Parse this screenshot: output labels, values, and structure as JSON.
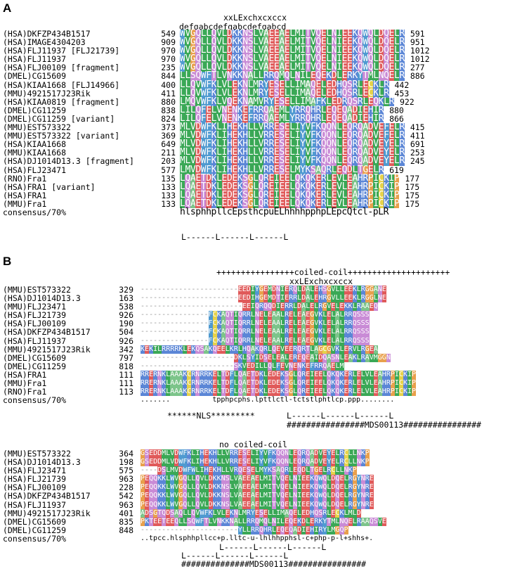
{
  "panels": [
    {
      "label": "A",
      "blocks": [
        {
          "header_lines": [
            "xxLExchxcxccx",
            "defgabcdefgabcdefgabcd"
          ],
          "rows": [
            {
              "name": "(HSA)DKFZP434B1517",
              "start": 549,
              "sequence": "WVGQLLQVLDKKNSLVAEEAELMITVQELNIEEKQWQLDQELR",
              "end": 591
            },
            {
              "name": "(HSA)IMAGE4304203",
              "start": 909,
              "sequence": "WVGQLLQVLDKKNSLVAEEAELMITVQELNIEEKQWQLDQELR",
              "end": 951
            },
            {
              "name": "(HSA)FLJ11937 [FLJ21739]",
              "start": 970,
              "sequence": "WVGQLLQVLDKKNSLVAEEAELMITVQELNIEEKQWQLDQELR",
              "end": 1012
            },
            {
              "name": "(HSA)FLJ11937",
              "start": 970,
              "sequence": "WVGQLLQVLDKKNSLVAEEAELMITVQELNIEEKQWQLDQELR",
              "end": 1012
            },
            {
              "name": "(HSA)FLJ00109 [fragment]",
              "start": 235,
              "sequence": "WVGQLLQVLDKKNSLVAEEAELMITVQELNIEEKQWQLDQELR",
              "end": 277
            },
            {
              "name": "(DMEL)CG15609",
              "start": 844,
              "sequence": "LLSQWFTLVNKKNALLRRQMQLNILEQEKDLERKYTMLNQELR",
              "end": 886
            },
            {
              "name": "(HSA)KIAA1668 [FLJ14966]",
              "start": 400,
              "sequence": "LLQVWFKLVLEKNLMRYESELLIMAQELEDHQSRLECKLR",
              "end": 442
            },
            {
              "name": "(MMU)4921517J23Rik",
              "start": 411,
              "sequence": "LLQVWFKLVLEKNLMRYESELLIMAQELEDHQSRLECKLR",
              "end": 453
            },
            {
              "name": "(HSA)KIAA0819 [fragment]",
              "start": 880,
              "sequence": "LMQVWFKLVQEKNAMVRYESELLIMAFKLEDRQSRLEQKLR",
              "end": 922
            },
            {
              "name": "(DMEL)CG11259",
              "start": 838,
              "sequence": "LILQFELVNENKEFRRQAEMLYRRQHRLEQEQADIEHIR",
              "end": 880
            },
            {
              "name": "(DMEL)CG11259 [variant]",
              "start": 824,
              "sequence": "LILQFELVNENKEFRRQAEMLYRRQHRLEQEQADIEHIR",
              "end": 866
            },
            {
              "name": "(MMU)EST573322",
              "start": 373,
              "sequence": "MLVDWFKLIHEKHLLVRRESELIYVFKQQNLEQRQADVEFELR",
              "end": 415
            },
            {
              "name": "(MMU)EST573322 [variant]",
              "start": 369,
              "sequence": "MLVDWFKLIHEKHLLVRRESELIYVFKQQNLEQRQADVEFELR",
              "end": 411
            },
            {
              "name": "(HSA)KIAA1668",
              "start": 649,
              "sequence": "MLVDWFKLIHEKHLLVRRESELIYVFKQQNLEQRQADVEYELR",
              "end": 691
            },
            {
              "name": "(MMU)KIAA1668",
              "start": 211,
              "sequence": "MLVDWFKLIHEKHLLVRRESELIYVFKQQNLEQRQADVEYELR",
              "end": 253
            },
            {
              "name": "(HSA)DJ1014D13.3 [fragment]",
              "start": 203,
              "sequence": "MLVDWFKLIHEKHLLVRRESELIYVFKQQNLEQRQADVEYELR",
              "end": 245
            },
            {
              "name": "(HSA)FLJ23471",
              "start": 577,
              "sequence": "LMVDWFKLIHEKHLLVRRESELMYKSAQRLEQDLTGELR",
              "end": 619
            },
            {
              "name": "(RNO)Fra1",
              "start": 135,
              "sequence": "LQAETDKLEDEKSGLQREIEELQKQKERLEVLEAHRPICKIP",
              "end": 177
            },
            {
              "name": "(HSA)FRA1 [variant]",
              "start": 133,
              "sequence": "LQAETDKLEDEKSGLQREIEELQKQKERLEVLEAHRPICKIP",
              "end": 175
            },
            {
              "name": "(HSA)FRA1",
              "start": 133,
              "sequence": "LQAETDKLEDEKSGLQREIEELQKQKERLEVLEAHRPICKIP",
              "end": 175
            },
            {
              "name": "(MMU)Fra1",
              "start": 133,
              "sequence": "LQAETDKLEDEKSGLQREIEELQKQKERLEVLEAHRPICKIP",
              "end": 175
            }
          ],
          "consensus_label": "consensus/70%",
          "consensus": "hlsphhpllcEpsthcpuELhhhhpphpLEpcQtcl-pLR",
          "footer_lines": [
            "L------L------L------L"
          ]
        }
      ]
    },
    {
      "label": "B",
      "blocks": [
        {
          "header_lines": [
            "++++++++++++++++coiled-coil+++++++++++++++++++++",
            "xxLExchxcxccx"
          ],
          "rows": [
            {
              "name": "(MMU)EST573322",
              "start": 329,
              "sequence": "-----------------------EEDIYGEMDNIERQLDALEHSGVLLEEKLRGGANE"
            },
            {
              "name": "(HSA)DJ1014D13.3",
              "start": 163,
              "sequence": "-----------------------EEDIHGEMDTIERRLDALEHRGVLLEEKLRGGLNE"
            },
            {
              "name": "(MMU)FLJ23471",
              "start": 538,
              "sequence": "------------------------EEIQRQQDIERRLDALELRGVELEKKLRAAEQ"
            },
            {
              "name": "(HSA)FLJ21739",
              "start": 926,
              "sequence": "----------------FCKAQTIQRRLNELEAALRELEAEGVKLELALRRQSSS"
            },
            {
              "name": "(HSA)FLJ00109",
              "start": 190,
              "sequence": "----------------FCKAQTIQRRLNELEAALRELEAEGVKLELALRRQSSS"
            },
            {
              "name": "(HSA)DKFZP434B1517",
              "start": 504,
              "sequence": "----------------FCKAQTIQRRLNELEAALRELEAEGVKLELALRRQSSS"
            },
            {
              "name": "(HSA)FLJ11937",
              "start": 926,
              "sequence": "----------------FCKAQTIQRRLNELEAALRELEAEGVKLELALRRQSSS"
            },
            {
              "name": "(MMU)4921517J23Rik",
              "start": 342,
              "sequence": "KEKILRRRRKLEKQSAKQEELKRLHQAKQRLQEVEERQRTLAGCGVKLERVLRGEA"
            },
            {
              "name": "(DMEL)CG15609",
              "start": 797,
              "sequence": "----------------------DKLSYIDSELEALEREQEAIDQASNLEAKLRAVMGGN"
            },
            {
              "name": "(DMEL)CG11259",
              "start": 818,
              "sequence": "----------------------SKVEDILLQLFEVNENKEFRRQAELM"
            },
            {
              "name": "(HSA)FRA1",
              "start": 111,
              "sequence": "RRERNKLAAAKCRNRRKELTDFLQAETDKLEDEKSGLQREIEELQKQKERLELVLEAHRPICKIP"
            },
            {
              "name": "(MMU)Fra1",
              "start": 111,
              "sequence": "RRERNKLAAAKCRNRRKELTDFLQAETDKLEDEKSGLQREIEELQKQKERLELVLEAHRPICKIP"
            },
            {
              "name": "(RNO)Fra1",
              "start": 113,
              "sequence": "RRERNKLAAAKCRNRRKELTDFLQAETDKLEDEKSGLQREIEELQKQKERLELVLEAHRPICKIP"
            }
          ],
          "consensus_label": "consensus/70%",
          "consensus": ".......          tpphpcphs.lpttlctl-tctstlphtlcp.ppp........",
          "footer_lines": [
            "******NLS*********",
            "L------L------L------L",
            "################MDS00113################"
          ]
        },
        {
          "header_lines": [
            "no coiled-coil"
          ],
          "rows": [
            {
              "name": "(MMU)EST573322",
              "start": 364,
              "sequence": "GSEDDMLVDWFKLIHEKHLLVRRESELIYVFKQQNLEQRQADVEYELRCLLNKP"
            },
            {
              "name": "(HSA)DJ1014D13.3",
              "start": 198,
              "sequence": "GSEDDMLVDWFKLIHEKHLLVRRESELIYVFKQQNLEQRQADVEYELRCLLNKP"
            },
            {
              "name": "(HSA)FLJ23471",
              "start": 575,
              "sequence": "----DSLMVDWFWLIHEKHLLVRQESELMYKSAQRLEQDLTGELRCLLNKP"
            },
            {
              "name": "(HSA)FLJ21739",
              "start": 963,
              "sequence": "PEQQKKLWVGQLLQVLDKKNSLVAEEAELMITVQELNIEEKQWQLDQELRGYNRE"
            },
            {
              "name": "(HSA)FLJ00109",
              "start": 228,
              "sequence": "PEQQKKLWVGQLLQVLDKKNSLVAEEAELMITVQELNIEEKQWQLDQELRGYNRE"
            },
            {
              "name": "(HSA)DKFZP434B1517",
              "start": 542,
              "sequence": "PEQQKKLWVGQLLQVLDKKNSLVAEEAELMITVQELNIEEKQWQLDQELRGYNRE"
            },
            {
              "name": "(HSA)FLJ11937",
              "start": 963,
              "sequence": "PEQQKKLWVGQLLQVLDKKNSLVAEEAELMITVQELNIEEKQWQLDQELRGYNRE"
            },
            {
              "name": "(MMU)4921517J23Rik",
              "start": 401,
              "sequence": "ADSGTQDSAQLLQVWFKLVLEKNLMRYESELLIMAQELEDHQSRLECKLMLD"
            },
            {
              "name": "(DMEL)CG15609",
              "start": 835,
              "sequence": "PKTEETEEQLLSQWFTLVNKKNALLRRQMQLNILEQEKDLERKYTMLNQELRAAQSVE"
            },
            {
              "name": "(DMEL)CG11259",
              "start": 848,
              "sequence": "-----------------------YLLRRQHRLEQEQADIEHIRYLMGQP"
            }
          ],
          "consensus_label": "consensus/70%",
          "consensus": "..tpcc.hlsphhpllcc+p.lltc-u-lhlhhpphsl-c+php-p-l+shhs+.",
          "footer_lines": [
            "L------L------L------L",
            "L------L------L------L",
            "##############MDS00113################"
          ]
        }
      ]
    }
  ]
}
